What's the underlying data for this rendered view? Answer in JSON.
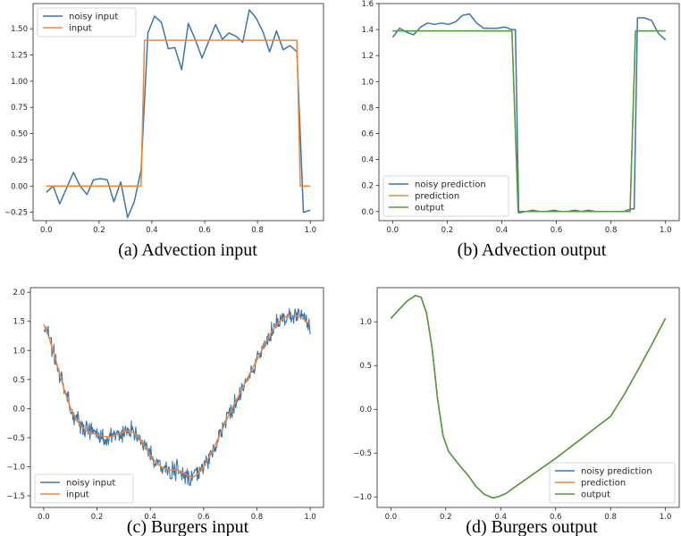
{
  "colors": {
    "blue": "#3b75af",
    "orange": "#ef8636",
    "green": "#519e3e",
    "axis": "#262626"
  },
  "chart_data": [
    {
      "id": "a",
      "type": "line",
      "caption": "(a) Advection input",
      "xlim": [
        -0.05,
        1.05
      ],
      "ylim": [
        -0.33,
        1.74
      ],
      "xticks": [
        0.0,
        0.2,
        0.4,
        0.6,
        0.8,
        1.0
      ],
      "xtick_labels": [
        "0.0",
        "0.2",
        "0.4",
        "0.6",
        "0.8",
        "1.0"
      ],
      "yticks": [
        -0.25,
        0.0,
        0.25,
        0.5,
        0.75,
        1.0,
        1.25,
        1.5
      ],
      "ytick_labels": [
        "−0.25",
        "0.00",
        "0.25",
        "0.50",
        "0.75",
        "1.00",
        "1.25",
        "1.50"
      ],
      "legend": {
        "position": "upper-left"
      },
      "series": [
        {
          "name": "noisy input",
          "color": "blue",
          "x": [
            0.0,
            0.026,
            0.051,
            0.077,
            0.103,
            0.128,
            0.154,
            0.179,
            0.205,
            0.231,
            0.256,
            0.282,
            0.308,
            0.333,
            0.359,
            0.385,
            0.41,
            0.436,
            0.462,
            0.487,
            0.513,
            0.538,
            0.564,
            0.59,
            0.615,
            0.641,
            0.667,
            0.692,
            0.718,
            0.744,
            0.769,
            0.795,
            0.821,
            0.846,
            0.872,
            0.897,
            0.923,
            0.949,
            0.974,
            1.0
          ],
          "y": [
            -0.06,
            0.0,
            -0.17,
            -0.02,
            0.13,
            0.0,
            -0.08,
            0.06,
            0.07,
            0.06,
            -0.15,
            0.04,
            -0.3,
            -0.15,
            0.15,
            1.46,
            1.62,
            1.56,
            1.31,
            1.32,
            1.11,
            1.55,
            1.4,
            1.22,
            1.38,
            1.54,
            1.4,
            1.46,
            1.43,
            1.37,
            1.68,
            1.6,
            1.47,
            1.28,
            1.48,
            1.3,
            1.34,
            1.28,
            -0.25,
            -0.23
          ]
        },
        {
          "name": "input",
          "color": "orange",
          "x": [
            0.0,
            0.359,
            0.372,
            0.949,
            0.962,
            1.0
          ],
          "y": [
            0.0,
            0.0,
            1.39,
            1.39,
            0.0,
            0.0
          ]
        }
      ]
    },
    {
      "id": "b",
      "type": "line",
      "caption": "(b) Advection output",
      "xlim": [
        -0.05,
        1.05
      ],
      "ylim": [
        -0.07,
        1.6
      ],
      "xticks": [
        0.0,
        0.2,
        0.4,
        0.6,
        0.8,
        1.0
      ],
      "xtick_labels": [
        "0.0",
        "0.2",
        "0.4",
        "0.6",
        "0.8",
        "1.0"
      ],
      "yticks": [
        0.0,
        0.2,
        0.4,
        0.6,
        0.8,
        1.0,
        1.2,
        1.4,
        1.6
      ],
      "ytick_labels": [
        "0.0",
        "0.2",
        "0.4",
        "0.6",
        "0.8",
        "1.0",
        "1.2",
        "1.4",
        "1.6"
      ],
      "legend": {
        "position": "lower-left"
      },
      "series": [
        {
          "name": "noisy prediction",
          "color": "blue",
          "x": [
            0.0,
            0.026,
            0.051,
            0.077,
            0.103,
            0.128,
            0.154,
            0.179,
            0.205,
            0.231,
            0.256,
            0.282,
            0.308,
            0.333,
            0.359,
            0.385,
            0.41,
            0.436,
            0.45,
            0.462,
            0.487,
            0.513,
            0.538,
            0.564,
            0.59,
            0.615,
            0.641,
            0.667,
            0.692,
            0.718,
            0.744,
            0.769,
            0.795,
            0.821,
            0.846,
            0.872,
            0.885,
            0.897,
            0.923,
            0.949,
            0.974,
            1.0
          ],
          "y": [
            1.34,
            1.41,
            1.38,
            1.36,
            1.42,
            1.45,
            1.44,
            1.45,
            1.44,
            1.46,
            1.51,
            1.52,
            1.45,
            1.41,
            1.41,
            1.41,
            1.42,
            1.4,
            1.4,
            -0.01,
            0.0,
            0.01,
            0.0,
            0.0,
            0.01,
            0.0,
            0.0,
            0.01,
            0.0,
            0.01,
            0.0,
            0.0,
            0.0,
            0.0,
            0.0,
            0.02,
            0.02,
            1.49,
            1.49,
            1.47,
            1.37,
            1.32
          ]
        },
        {
          "name": "prediction",
          "color": "orange",
          "x": [
            0.0,
            0.437,
            0.46,
            0.87,
            0.89,
            1.0
          ],
          "y": [
            1.39,
            1.39,
            0.0,
            0.0,
            1.39,
            1.39
          ]
        },
        {
          "name": "output",
          "color": "green",
          "x": [
            0.0,
            0.437,
            0.46,
            0.87,
            0.89,
            1.0
          ],
          "y": [
            1.39,
            1.39,
            0.0,
            0.0,
            1.39,
            1.39
          ]
        }
      ]
    },
    {
      "id": "c",
      "type": "line",
      "caption": "(c) Burgers input",
      "xlim": [
        -0.05,
        1.05
      ],
      "ylim": [
        -1.7,
        2.08
      ],
      "xticks": [
        0.0,
        0.2,
        0.4,
        0.6,
        0.8,
        1.0
      ],
      "xtick_labels": [
        "0.0",
        "0.2",
        "0.4",
        "0.6",
        "0.8",
        "1.0"
      ],
      "yticks": [
        -1.5,
        -1.0,
        -0.5,
        0.0,
        0.5,
        1.0,
        1.5,
        2.0
      ],
      "ytick_labels": [
        "−1.5",
        "−1.0",
        "−0.5",
        "0.0",
        "0.5",
        "1.0",
        "1.5",
        "2.0"
      ],
      "legend": {
        "position": "lower-left"
      },
      "series": [
        {
          "name": "noisy input",
          "color": "blue",
          "x": [
            0.0,
            0.02,
            0.04,
            0.06,
            0.08,
            0.1,
            0.12,
            0.14,
            0.16,
            0.18,
            0.2,
            0.22,
            0.24,
            0.26,
            0.28,
            0.3,
            0.32,
            0.34,
            0.36,
            0.38,
            0.4,
            0.42,
            0.44,
            0.46,
            0.48,
            0.5,
            0.52,
            0.54,
            0.56,
            0.58,
            0.6,
            0.62,
            0.64,
            0.66,
            0.68,
            0.7,
            0.72,
            0.74,
            0.76,
            0.78,
            0.8,
            0.82,
            0.84,
            0.86,
            0.88,
            0.9,
            0.92,
            0.94,
            0.96,
            0.98,
            1.0
          ],
          "y": [
            1.45,
            1.22,
            0.92,
            0.6,
            0.28,
            0.02,
            -0.18,
            -0.3,
            -0.38,
            -0.42,
            -0.45,
            -0.47,
            -0.49,
            -0.48,
            -0.44,
            -0.4,
            -0.38,
            -0.42,
            -0.52,
            -0.66,
            -0.8,
            -0.92,
            -1.0,
            -1.04,
            -1.06,
            -1.05,
            -1.09,
            -1.15,
            -1.18,
            -1.12,
            -1.0,
            -0.84,
            -0.66,
            -0.46,
            -0.26,
            -0.06,
            0.12,
            0.3,
            0.48,
            0.66,
            0.84,
            1.02,
            1.2,
            1.36,
            1.48,
            1.56,
            1.6,
            1.6,
            1.58,
            1.52,
            1.45
          ],
          "noise_amplitude": 0.2
        },
        {
          "name": "input",
          "color": "orange",
          "x": [
            0.0,
            0.02,
            0.04,
            0.06,
            0.08,
            0.1,
            0.12,
            0.14,
            0.16,
            0.18,
            0.2,
            0.22,
            0.24,
            0.26,
            0.28,
            0.3,
            0.32,
            0.34,
            0.36,
            0.38,
            0.4,
            0.42,
            0.44,
            0.46,
            0.48,
            0.5,
            0.52,
            0.54,
            0.56,
            0.58,
            0.6,
            0.62,
            0.64,
            0.66,
            0.68,
            0.7,
            0.72,
            0.74,
            0.76,
            0.78,
            0.8,
            0.82,
            0.84,
            0.86,
            0.88,
            0.9,
            0.92,
            0.94,
            0.96,
            0.98,
            1.0
          ],
          "y": [
            1.45,
            1.22,
            0.92,
            0.6,
            0.28,
            0.02,
            -0.18,
            -0.3,
            -0.38,
            -0.42,
            -0.45,
            -0.47,
            -0.49,
            -0.48,
            -0.44,
            -0.4,
            -0.38,
            -0.42,
            -0.52,
            -0.66,
            -0.8,
            -0.92,
            -1.0,
            -1.04,
            -1.06,
            -1.05,
            -1.09,
            -1.15,
            -1.18,
            -1.12,
            -1.0,
            -0.84,
            -0.66,
            -0.46,
            -0.26,
            -0.06,
            0.12,
            0.3,
            0.48,
            0.66,
            0.84,
            1.02,
            1.2,
            1.36,
            1.48,
            1.56,
            1.6,
            1.6,
            1.58,
            1.52,
            1.45
          ]
        }
      ]
    },
    {
      "id": "d",
      "type": "line",
      "caption": "(d) Burgers output",
      "xlim": [
        -0.05,
        1.05
      ],
      "ylim": [
        -1.12,
        1.39
      ],
      "xticks": [
        0.0,
        0.2,
        0.4,
        0.6,
        0.8,
        1.0
      ],
      "xtick_labels": [
        "0.0",
        "0.2",
        "0.4",
        "0.6",
        "0.8",
        "1.0"
      ],
      "yticks": [
        -1.0,
        -0.5,
        0.0,
        0.5,
        1.0
      ],
      "ytick_labels": [
        "−1.0",
        "−0.5",
        "0.0",
        "0.5",
        "1.0"
      ],
      "legend": {
        "position": "lower-right"
      },
      "series": [
        {
          "name": "noisy prediction",
          "color": "blue",
          "x": [
            0.0,
            0.03,
            0.06,
            0.09,
            0.11,
            0.13,
            0.15,
            0.17,
            0.19,
            0.21,
            0.23,
            0.25,
            0.28,
            0.31,
            0.34,
            0.37,
            0.39,
            0.42,
            0.45,
            0.5,
            0.55,
            0.6,
            0.65,
            0.7,
            0.75,
            0.8,
            0.85,
            0.9,
            0.95,
            1.0
          ],
          "y": [
            1.04,
            1.14,
            1.24,
            1.3,
            1.28,
            1.1,
            0.7,
            0.12,
            -0.3,
            -0.48,
            -0.56,
            -0.64,
            -0.75,
            -0.88,
            -0.97,
            -1.01,
            -1.0,
            -0.96,
            -0.89,
            -0.78,
            -0.67,
            -0.56,
            -0.44,
            -0.32,
            -0.2,
            -0.08,
            0.17,
            0.45,
            0.74,
            1.04
          ]
        },
        {
          "name": "prediction",
          "color": "orange",
          "x": [
            0.0,
            0.03,
            0.06,
            0.09,
            0.11,
            0.13,
            0.15,
            0.17,
            0.19,
            0.21,
            0.23,
            0.25,
            0.28,
            0.31,
            0.34,
            0.37,
            0.39,
            0.42,
            0.45,
            0.5,
            0.55,
            0.6,
            0.65,
            0.7,
            0.75,
            0.8,
            0.85,
            0.9,
            0.95,
            1.0
          ],
          "y": [
            1.04,
            1.14,
            1.24,
            1.3,
            1.28,
            1.1,
            0.7,
            0.12,
            -0.3,
            -0.48,
            -0.56,
            -0.64,
            -0.75,
            -0.88,
            -0.97,
            -1.01,
            -1.0,
            -0.96,
            -0.89,
            -0.78,
            -0.67,
            -0.56,
            -0.44,
            -0.32,
            -0.2,
            -0.08,
            0.17,
            0.45,
            0.74,
            1.04
          ]
        },
        {
          "name": "output",
          "color": "green",
          "x": [
            0.0,
            0.03,
            0.06,
            0.09,
            0.11,
            0.13,
            0.15,
            0.17,
            0.19,
            0.21,
            0.23,
            0.25,
            0.28,
            0.31,
            0.34,
            0.37,
            0.39,
            0.42,
            0.45,
            0.5,
            0.55,
            0.6,
            0.65,
            0.7,
            0.75,
            0.8,
            0.85,
            0.9,
            0.95,
            1.0
          ],
          "y": [
            1.04,
            1.14,
            1.24,
            1.3,
            1.28,
            1.1,
            0.7,
            0.12,
            -0.3,
            -0.48,
            -0.56,
            -0.64,
            -0.75,
            -0.88,
            -0.97,
            -1.01,
            -1.0,
            -0.96,
            -0.89,
            -0.78,
            -0.67,
            -0.56,
            -0.44,
            -0.32,
            -0.2,
            -0.08,
            0.17,
            0.45,
            0.74,
            1.04
          ]
        }
      ]
    }
  ]
}
